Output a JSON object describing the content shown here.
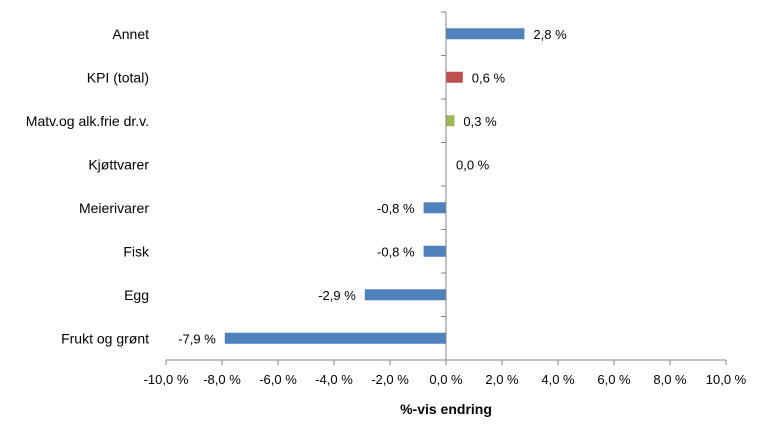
{
  "chart_data": {
    "type": "bar",
    "orientation": "horizontal",
    "title": "",
    "xlabel": "%-vis endring",
    "ylabel": "",
    "xlim": [
      -10.0,
      10.0
    ],
    "xticks": [
      -10,
      -8,
      -6,
      -4,
      -2,
      0,
      2,
      4,
      6,
      8,
      10
    ],
    "xtick_labels": [
      "-10,0 %",
      "-8,0 %",
      "-6,0 %",
      "-4,0 %",
      "-2,0 %",
      "0,0 %",
      "2,0 %",
      "4,0 %",
      "6,0 %",
      "8,0 %",
      "10,0 %"
    ],
    "grid": false,
    "legend": "none",
    "categories": [
      "Annet",
      "KPI (total)",
      "Matv.og alk.frie dr.v.",
      "Kjøttvarer",
      "Meierivarer",
      "Fisk",
      "Egg",
      "Frukt og grønt"
    ],
    "values": [
      2.8,
      0.6,
      0.3,
      0.0,
      -0.8,
      -0.8,
      -2.9,
      -7.9
    ],
    "data_labels": [
      "2,8 %",
      "0,6 %",
      "0,3 %",
      "0,0 %",
      "-0,8 %",
      "-0,8 %",
      "-2,9 %",
      "-7,9 %"
    ],
    "bar_colors": [
      "#4F81BD",
      "#C0504D",
      "#9BBB59",
      "#4F81BD",
      "#4F81BD",
      "#4F81BD",
      "#4F81BD",
      "#4F81BD"
    ]
  }
}
